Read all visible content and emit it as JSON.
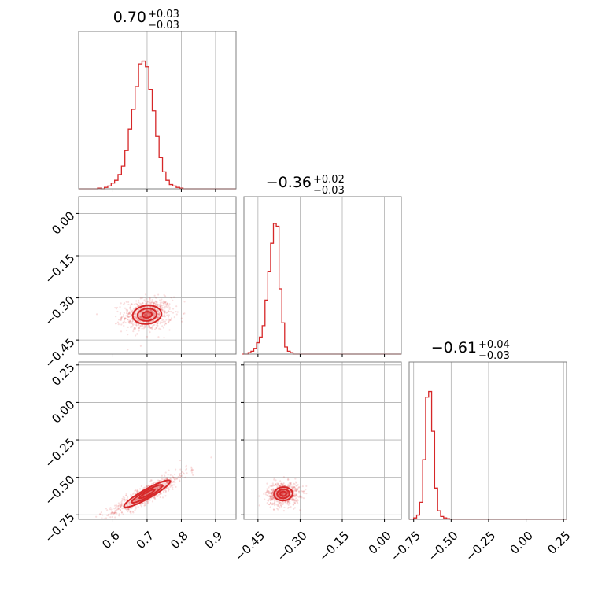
{
  "chart_data": {
    "type": "corner",
    "color": "#d62728",
    "grid": true,
    "parameters": [
      {
        "median": 0.7,
        "plus": 0.03,
        "minus": 0.03,
        "title_main": "0.70",
        "title_sup": "+0.03",
        "title_sub": "−0.03",
        "range": [
          0.5,
          0.96
        ],
        "ticks": [
          0.6,
          0.7,
          0.8,
          0.9
        ],
        "tick_labels": [
          "0.6",
          "0.7",
          "0.8",
          "0.9"
        ]
      },
      {
        "median": -0.36,
        "plus": 0.02,
        "minus": 0.03,
        "title_main": "−0.36",
        "title_sup": "+0.02",
        "title_sub": "−0.03",
        "range": [
          -0.5,
          0.06
        ],
        "ticks": [
          -0.45,
          -0.3,
          -0.15,
          0.0
        ],
        "tick_labels": [
          "−0.45",
          "−0.30",
          "−0.15",
          "0.00"
        ]
      },
      {
        "median": -0.61,
        "plus": 0.04,
        "minus": 0.03,
        "title_main": "−0.61",
        "title_sup": "+0.04",
        "title_sub": "−0.03",
        "range": [
          -0.78,
          0.27
        ],
        "ticks": [
          -0.75,
          -0.5,
          -0.25,
          0.0,
          0.25
        ],
        "tick_labels": [
          "−0.75",
          "−0.50",
          "−0.25",
          "0.00",
          "0.25"
        ]
      }
    ],
    "histograms": [
      {
        "param": 0,
        "bins": [
          0.55,
          0.56,
          0.57,
          0.58,
          0.59,
          0.6,
          0.61,
          0.62,
          0.63,
          0.64,
          0.65,
          0.66,
          0.67,
          0.68,
          0.69,
          0.7,
          0.71,
          0.72,
          0.73,
          0.74,
          0.75,
          0.76,
          0.77,
          0.78,
          0.79,
          0.8,
          0.81,
          0.82,
          0.83,
          0.84,
          0.85
        ],
        "counts": [
          0,
          0.005,
          0,
          0.01,
          0.02,
          0.04,
          0.06,
          0.1,
          0.16,
          0.27,
          0.42,
          0.56,
          0.72,
          0.88,
          0.9,
          0.86,
          0.7,
          0.55,
          0.37,
          0.22,
          0.12,
          0.06,
          0.03,
          0.02,
          0.01,
          0.005,
          0,
          0,
          0,
          0,
          0
        ]
      },
      {
        "param": 1,
        "bins": [
          -0.5,
          -0.49,
          -0.48,
          -0.47,
          -0.46,
          -0.45,
          -0.44,
          -0.43,
          -0.42,
          -0.41,
          -0.4,
          -0.39,
          -0.38,
          -0.37,
          -0.36,
          -0.35,
          -0.34,
          -0.33,
          -0.32,
          -0.31,
          -0.3,
          -0.29,
          -0.28,
          -0.27,
          -0.26,
          -0.25
        ],
        "counts": [
          0,
          0,
          0.01,
          0.02,
          0.04,
          0.08,
          0.12,
          0.2,
          0.38,
          0.58,
          0.78,
          0.92,
          0.9,
          0.46,
          0.22,
          0.05,
          0.02,
          0.01,
          0,
          0,
          0,
          0,
          0,
          0,
          0,
          0
        ]
      },
      {
        "param": 2,
        "bins": [
          -0.76,
          -0.74,
          -0.72,
          -0.7,
          -0.68,
          -0.66,
          -0.64,
          -0.62,
          -0.6,
          -0.58,
          -0.56,
          -0.54,
          -0.52,
          -0.5,
          -0.48,
          -0.46,
          -0.44
        ],
        "counts": [
          0,
          0.01,
          0.03,
          0.12,
          0.42,
          0.86,
          0.9,
          0.62,
          0.22,
          0.06,
          0.02,
          0.01,
          0.005,
          0,
          0,
          0,
          0
        ]
      }
    ],
    "pairs": [
      {
        "x_param": 0,
        "y_param": 1,
        "center": [
          0.7,
          -0.36
        ],
        "sigma": [
          0.028,
          0.022
        ],
        "rho": 0.1,
        "contours": [
          0.5,
          1.0,
          1.5
        ]
      },
      {
        "x_param": 0,
        "y_param": 2,
        "center": [
          0.7,
          -0.61
        ],
        "sigma": [
          0.045,
          0.06
        ],
        "rho": 0.92,
        "contours": [
          0.5,
          1.0,
          1.5
        ]
      },
      {
        "x_param": 1,
        "y_param": 2,
        "center": [
          -0.36,
          -0.61
        ],
        "sigma": [
          0.022,
          0.03
        ],
        "rho": 0.05,
        "contours": [
          0.5,
          1.0,
          1.5
        ]
      }
    ]
  }
}
